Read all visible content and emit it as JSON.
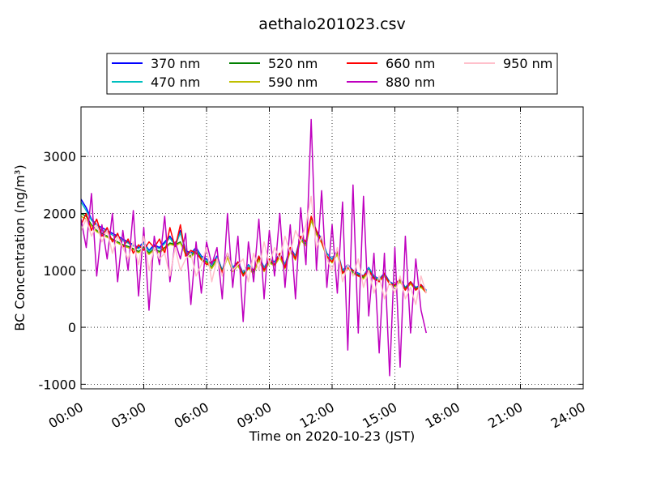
{
  "chart_data": {
    "type": "line",
    "title": "aethalo201023.csv",
    "x_label": "Time on 2020-10-23 (JST)",
    "y_label": "BC Concentration (ng/m³)",
    "x": [
      "00:00",
      "00:15",
      "00:30",
      "00:45",
      "01:00",
      "01:15",
      "01:30",
      "01:45",
      "02:00",
      "02:15",
      "02:30",
      "02:45",
      "03:00",
      "03:15",
      "03:30",
      "03:45",
      "04:00",
      "04:15",
      "04:30",
      "04:45",
      "05:00",
      "05:15",
      "05:30",
      "05:45",
      "06:00",
      "06:15",
      "06:30",
      "06:45",
      "07:00",
      "07:15",
      "07:30",
      "07:45",
      "08:00",
      "08:15",
      "08:30",
      "08:45",
      "09:00",
      "09:15",
      "09:30",
      "09:45",
      "10:00",
      "10:15",
      "10:30",
      "10:45",
      "11:00",
      "11:15",
      "11:30",
      "11:45",
      "12:00",
      "12:15",
      "12:30",
      "12:45",
      "13:00",
      "13:15",
      "13:30",
      "13:45",
      "14:00",
      "14:15",
      "14:30",
      "14:45",
      "15:00",
      "15:15",
      "15:30",
      "15:45",
      "16:00",
      "16:15",
      "16:30"
    ],
    "series": [
      {
        "name": "370 nm",
        "color": "#0000ff",
        "values": [
          2250,
          2100,
          1900,
          1800,
          1750,
          1700,
          1650,
          1600,
          1550,
          1500,
          1450,
          1400,
          1500,
          1350,
          1450,
          1400,
          1500,
          1600,
          1450,
          1700,
          1350,
          1300,
          1400,
          1250,
          1200,
          1100,
          1250,
          1000,
          1300,
          1050,
          1150,
          950,
          1100,
          1000,
          1250,
          1050,
          1200,
          1150,
          1300,
          1100,
          1400,
          1250,
          1600,
          1500,
          1900,
          1700,
          1550,
          1300,
          1200,
          1350,
          1000,
          1100,
          1000,
          950,
          900,
          1050,
          900,
          850,
          950,
          800,
          750,
          850,
          700,
          800,
          700,
          750,
          650
        ]
      },
      {
        "name": "470 nm",
        "color": "#00bfbf",
        "values": [
          2200,
          2050,
          1880,
          1780,
          1700,
          1680,
          1620,
          1580,
          1520,
          1480,
          1430,
          1380,
          1470,
          1330,
          1420,
          1380,
          1470,
          1570,
          1430,
          1660,
          1330,
          1280,
          1380,
          1230,
          1180,
          1090,
          1230,
          990,
          1280,
          1040,
          1130,
          940,
          1090,
          990,
          1230,
          1040,
          1190,
          1140,
          1280,
          1090,
          1380,
          1240,
          1580,
          1480,
          1870,
          1680,
          1530,
          1290,
          1190,
          1330,
          990,
          1090,
          990,
          940,
          890,
          1040,
          890,
          840,
          940,
          790,
          740,
          840,
          690,
          790,
          690,
          740,
          640
        ]
      },
      {
        "name": "520 nm",
        "color": "#008000",
        "values": [
          2000,
          1950,
          1800,
          1700,
          1650,
          1600,
          1550,
          1500,
          1450,
          1420,
          1380,
          1330,
          1400,
          1300,
          1380,
          1330,
          1400,
          1480,
          1450,
          1500,
          1300,
          1250,
          1350,
          1200,
          1150,
          1050,
          1200,
          980,
          1250,
          1000,
          1100,
          930,
          1050,
          960,
          1200,
          1000,
          1150,
          1100,
          1250,
          1050,
          1350,
          1200,
          1550,
          1450,
          1900,
          1650,
          1500,
          1250,
          1150,
          1300,
          960,
          1060,
          960,
          920,
          870,
          1010,
          870,
          820,
          920,
          780,
          730,
          820,
          680,
          780,
          680,
          720,
          630
        ]
      },
      {
        "name": "590 nm",
        "color": "#bfbf00",
        "values": [
          1950,
          1900,
          1780,
          1680,
          1620,
          1580,
          1530,
          1480,
          1430,
          1400,
          1360,
          1310,
          1380,
          1280,
          1360,
          1310,
          1380,
          1460,
          1430,
          1480,
          1280,
          1230,
          1330,
          1180,
          1130,
          1030,
          1180,
          960,
          1230,
          980,
          1080,
          910,
          1030,
          940,
          1180,
          980,
          1130,
          1080,
          1230,
          1030,
          1330,
          1180,
          1530,
          1430,
          1880,
          1630,
          1480,
          1230,
          1130,
          1280,
          940,
          1040,
          940,
          900,
          850,
          990,
          850,
          800,
          900,
          760,
          710,
          800,
          660,
          760,
          660,
          700,
          610
        ]
      },
      {
        "name": "660 nm",
        "color": "#ff0000",
        "values": [
          1800,
          2000,
          1700,
          1900,
          1600,
          1750,
          1500,
          1650,
          1400,
          1550,
          1300,
          1450,
          1350,
          1500,
          1400,
          1550,
          1300,
          1750,
          1400,
          1800,
          1250,
          1350,
          1300,
          1200,
          1100,
          1150,
          1200,
          950,
          1300,
          1000,
          1150,
          900,
          1050,
          1000,
          1250,
          1000,
          1200,
          1100,
          1300,
          1050,
          1400,
          1200,
          1600,
          1500,
          1950,
          1700,
          1500,
          1250,
          1150,
          1350,
          950,
          1050,
          1000,
          900,
          900,
          1000,
          850,
          800,
          950,
          750,
          750,
          850,
          650,
          800,
          650,
          750,
          600
        ]
      },
      {
        "name": "880 nm",
        "color": "#bf00bf",
        "values": [
          1900,
          1400,
          2350,
          900,
          1800,
          1200,
          2000,
          800,
          1700,
          1000,
          2050,
          550,
          1750,
          300,
          1600,
          1100,
          1950,
          800,
          1500,
          1200,
          1650,
          400,
          1500,
          600,
          1500,
          1100,
          1400,
          500,
          2000,
          700,
          1600,
          100,
          1500,
          800,
          1900,
          500,
          1700,
          900,
          2000,
          700,
          1800,
          500,
          2100,
          1100,
          3650,
          1000,
          2400,
          700,
          1800,
          600,
          2200,
          -400,
          2500,
          -100,
          2300,
          200,
          1300,
          -450,
          1300,
          -850,
          1400,
          -700,
          1600,
          -100,
          1200,
          300,
          -100
        ]
      },
      {
        "name": "950 nm",
        "color": "#ffc0cb",
        "values": [
          1700,
          1900,
          1600,
          1800,
          1500,
          1700,
          1300,
          1600,
          1400,
          1200,
          1500,
          1100,
          1600,
          1000,
          1400,
          1200,
          1300,
          900,
          1400,
          1000,
          1200,
          1300,
          900,
          1100,
          1400,
          800,
          1200,
          900,
          1300,
          1000,
          1100,
          1200,
          800,
          1300,
          1000,
          1500,
          1100,
          1400,
          1200,
          1600,
          1300,
          1700,
          1500,
          1800,
          2300,
          1400,
          1600,
          1200,
          1000,
          1400,
          800,
          1100,
          900,
          1200,
          700,
          1000,
          600,
          900,
          500,
          800,
          600,
          900,
          500,
          700,
          400,
          900,
          600
        ]
      }
    ],
    "xlim": [
      "00:00",
      "24:00"
    ],
    "xticks": [
      "00:00",
      "03:00",
      "06:00",
      "09:00",
      "12:00",
      "15:00",
      "18:00",
      "21:00",
      "24:00"
    ],
    "ylim": [
      -1080,
      3870
    ],
    "yticks": [
      -1000,
      0,
      1000,
      2000,
      3000
    ],
    "grid": true,
    "legend": "upper center"
  }
}
